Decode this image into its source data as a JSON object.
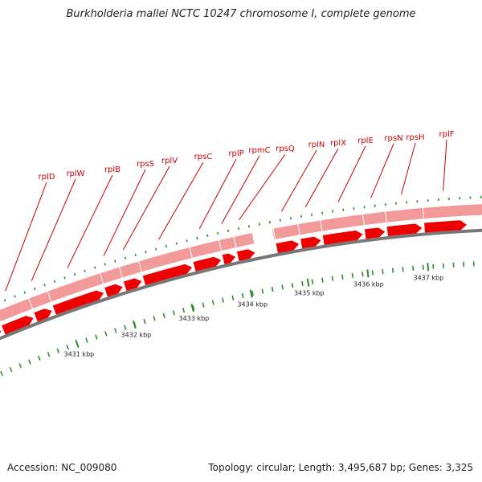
{
  "title": "Burkholderia mallei NCTC 10247 chromosome I, complete genome",
  "footer": {
    "accession": "Accession: NC_009080",
    "stats": "Topology: circular; Length: 3,495,687 bp; Genes: 3,325"
  },
  "colors": {
    "gene": "#ee0000",
    "gene_band": "#f29a9a",
    "backbone": "#777777",
    "tick": "#2e8b2e",
    "label": "#cc0000"
  },
  "genes": [
    "rplD",
    "rplW",
    "rplB",
    "rpsS",
    "rplV",
    "rpsC",
    "rplP",
    "rpmC",
    "rpsQ",
    "rplN",
    "rplX",
    "rplE",
    "rpsN",
    "rpsH",
    "rplF"
  ],
  "scale": {
    "unit": "kbp",
    "labels": [
      "3431 kbp",
      "3432 kbp",
      "3433 kbp",
      "3434 kbp",
      "3435 kbp",
      "3436 kbp",
      "3437 kbp"
    ]
  }
}
